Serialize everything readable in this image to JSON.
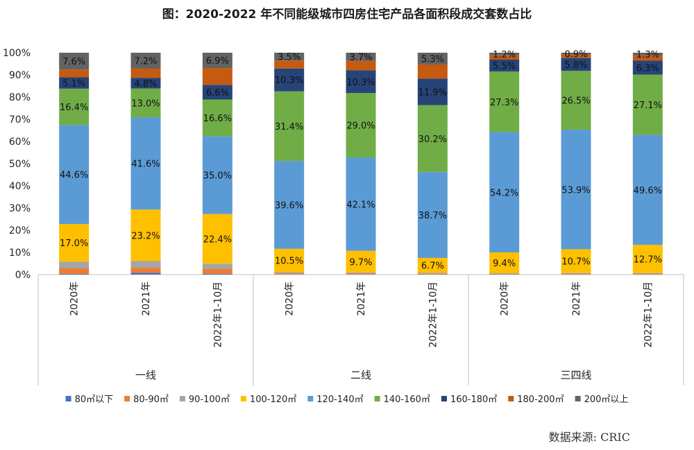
{
  "title": "图：2020-2022 年不同能级城市四房住宅产品各面积段成交套数占比",
  "source": "数据来源:  CRIC",
  "chart_data": {
    "type": "bar",
    "stacked": true,
    "categories": [
      "2020年",
      "2021年",
      "2022年1-10月",
      "2020年",
      "2021年",
      "2022年1-10月",
      "2020年",
      "2021年",
      "2022年1-10月"
    ],
    "groups": [
      {
        "label": "一线",
        "start": 0,
        "end": 2
      },
      {
        "label": "二线",
        "start": 3,
        "end": 5
      },
      {
        "label": "三四线",
        "start": 6,
        "end": 8
      }
    ],
    "ylim": [
      0,
      100
    ],
    "yticks": [
      "0%",
      "10%",
      "20%",
      "30%",
      "40%",
      "50%",
      "60%",
      "70%",
      "80%",
      "90%",
      "100%"
    ],
    "legend_position": "bottom",
    "series": [
      {
        "name": "80㎡以下",
        "color": "#4472C4",
        "values": [
          0.3,
          0.8,
          0.3,
          0.1,
          0.1,
          0.1,
          0.1,
          0.1,
          0.1
        ]
      },
      {
        "name": "80-90㎡",
        "color": "#ED7D31",
        "values": [
          2.5,
          2.3,
          2.2,
          0.4,
          0.4,
          0.3,
          0.2,
          0.2,
          0.2
        ]
      },
      {
        "name": "90-100㎡",
        "color": "#A5A5A5",
        "values": [
          3.0,
          3.0,
          2.4,
          0.6,
          0.5,
          0.4,
          0.3,
          0.4,
          0.4
        ]
      },
      {
        "name": "100-120㎡",
        "color": "#FFC000",
        "values": [
          17.0,
          23.2,
          22.4,
          10.5,
          9.7,
          6.7,
          9.4,
          10.7,
          12.7
        ]
      },
      {
        "name": "120-140㎡",
        "color": "#5B9BD5",
        "values": [
          44.6,
          41.6,
          35.0,
          39.6,
          42.1,
          38.7,
          54.2,
          53.9,
          49.6
        ]
      },
      {
        "name": "140-160㎡",
        "color": "#70AD47",
        "values": [
          16.4,
          13.0,
          16.6,
          31.4,
          29.0,
          30.2,
          27.3,
          26.5,
          27.1
        ]
      },
      {
        "name": "160-180㎡",
        "color": "#264478",
        "values": [
          5.1,
          4.8,
          6.6,
          10.3,
          10.3,
          11.9,
          5.5,
          5.8,
          6.3
        ]
      },
      {
        "name": "180-200㎡",
        "color": "#C55A11",
        "values": [
          3.5,
          4.1,
          7.6,
          3.6,
          4.2,
          6.4,
          1.8,
          1.5,
          2.3
        ]
      },
      {
        "name": "200㎡以上",
        "color": "#636363",
        "values": [
          7.6,
          7.2,
          6.9,
          3.5,
          3.7,
          5.3,
          1.2,
          0.9,
          1.3
        ]
      }
    ],
    "data_labels": [
      {
        "series": 3,
        "cat": 0,
        "text": "17.0%"
      },
      {
        "series": 4,
        "cat": 0,
        "text": "44.6%"
      },
      {
        "series": 5,
        "cat": 0,
        "text": "16.4%"
      },
      {
        "series": 6,
        "cat": 0,
        "text": "5.1%"
      },
      {
        "series": 8,
        "cat": 0,
        "text": "7.6%"
      },
      {
        "series": 3,
        "cat": 1,
        "text": "23.2%"
      },
      {
        "series": 4,
        "cat": 1,
        "text": "41.6%"
      },
      {
        "series": 5,
        "cat": 1,
        "text": "13.0%"
      },
      {
        "series": 6,
        "cat": 1,
        "text": "4.8%"
      },
      {
        "series": 8,
        "cat": 1,
        "text": "7.2%"
      },
      {
        "series": 3,
        "cat": 2,
        "text": "22.4%"
      },
      {
        "series": 4,
        "cat": 2,
        "text": "35.0%"
      },
      {
        "series": 5,
        "cat": 2,
        "text": "16.6%"
      },
      {
        "series": 6,
        "cat": 2,
        "text": "6.6%"
      },
      {
        "series": 8,
        "cat": 2,
        "text": "6.9%"
      },
      {
        "series": 3,
        "cat": 3,
        "text": "10.5%"
      },
      {
        "series": 4,
        "cat": 3,
        "text": "39.6%"
      },
      {
        "series": 5,
        "cat": 3,
        "text": "31.4%"
      },
      {
        "series": 6,
        "cat": 3,
        "text": "10.3%"
      },
      {
        "series": 8,
        "cat": 3,
        "text": "3.5%"
      },
      {
        "series": 3,
        "cat": 4,
        "text": "9.7%"
      },
      {
        "series": 4,
        "cat": 4,
        "text": "42.1%"
      },
      {
        "series": 5,
        "cat": 4,
        "text": "29.0%"
      },
      {
        "series": 6,
        "cat": 4,
        "text": "10.3%"
      },
      {
        "series": 8,
        "cat": 4,
        "text": "3.7%"
      },
      {
        "series": 3,
        "cat": 5,
        "text": "6.7%"
      },
      {
        "series": 4,
        "cat": 5,
        "text": "38.7%"
      },
      {
        "series": 5,
        "cat": 5,
        "text": "30.2%"
      },
      {
        "series": 6,
        "cat": 5,
        "text": "11.9%"
      },
      {
        "series": 8,
        "cat": 5,
        "text": "5.3%"
      },
      {
        "series": 3,
        "cat": 6,
        "text": "9.4%"
      },
      {
        "series": 4,
        "cat": 6,
        "text": "54.2%"
      },
      {
        "series": 5,
        "cat": 6,
        "text": "27.3%"
      },
      {
        "series": 6,
        "cat": 6,
        "text": "5.5%"
      },
      {
        "series": 8,
        "cat": 6,
        "text": "1.2%"
      },
      {
        "series": 3,
        "cat": 7,
        "text": "10.7%"
      },
      {
        "series": 4,
        "cat": 7,
        "text": "53.9%"
      },
      {
        "series": 5,
        "cat": 7,
        "text": "26.5%"
      },
      {
        "series": 6,
        "cat": 7,
        "text": "5.8%"
      },
      {
        "series": 8,
        "cat": 7,
        "text": "0.9%"
      },
      {
        "series": 3,
        "cat": 8,
        "text": "12.7%"
      },
      {
        "series": 4,
        "cat": 8,
        "text": "49.6%"
      },
      {
        "series": 5,
        "cat": 8,
        "text": "27.1%"
      },
      {
        "series": 6,
        "cat": 8,
        "text": "6.3%"
      },
      {
        "series": 8,
        "cat": 8,
        "text": "1.3%"
      }
    ]
  }
}
